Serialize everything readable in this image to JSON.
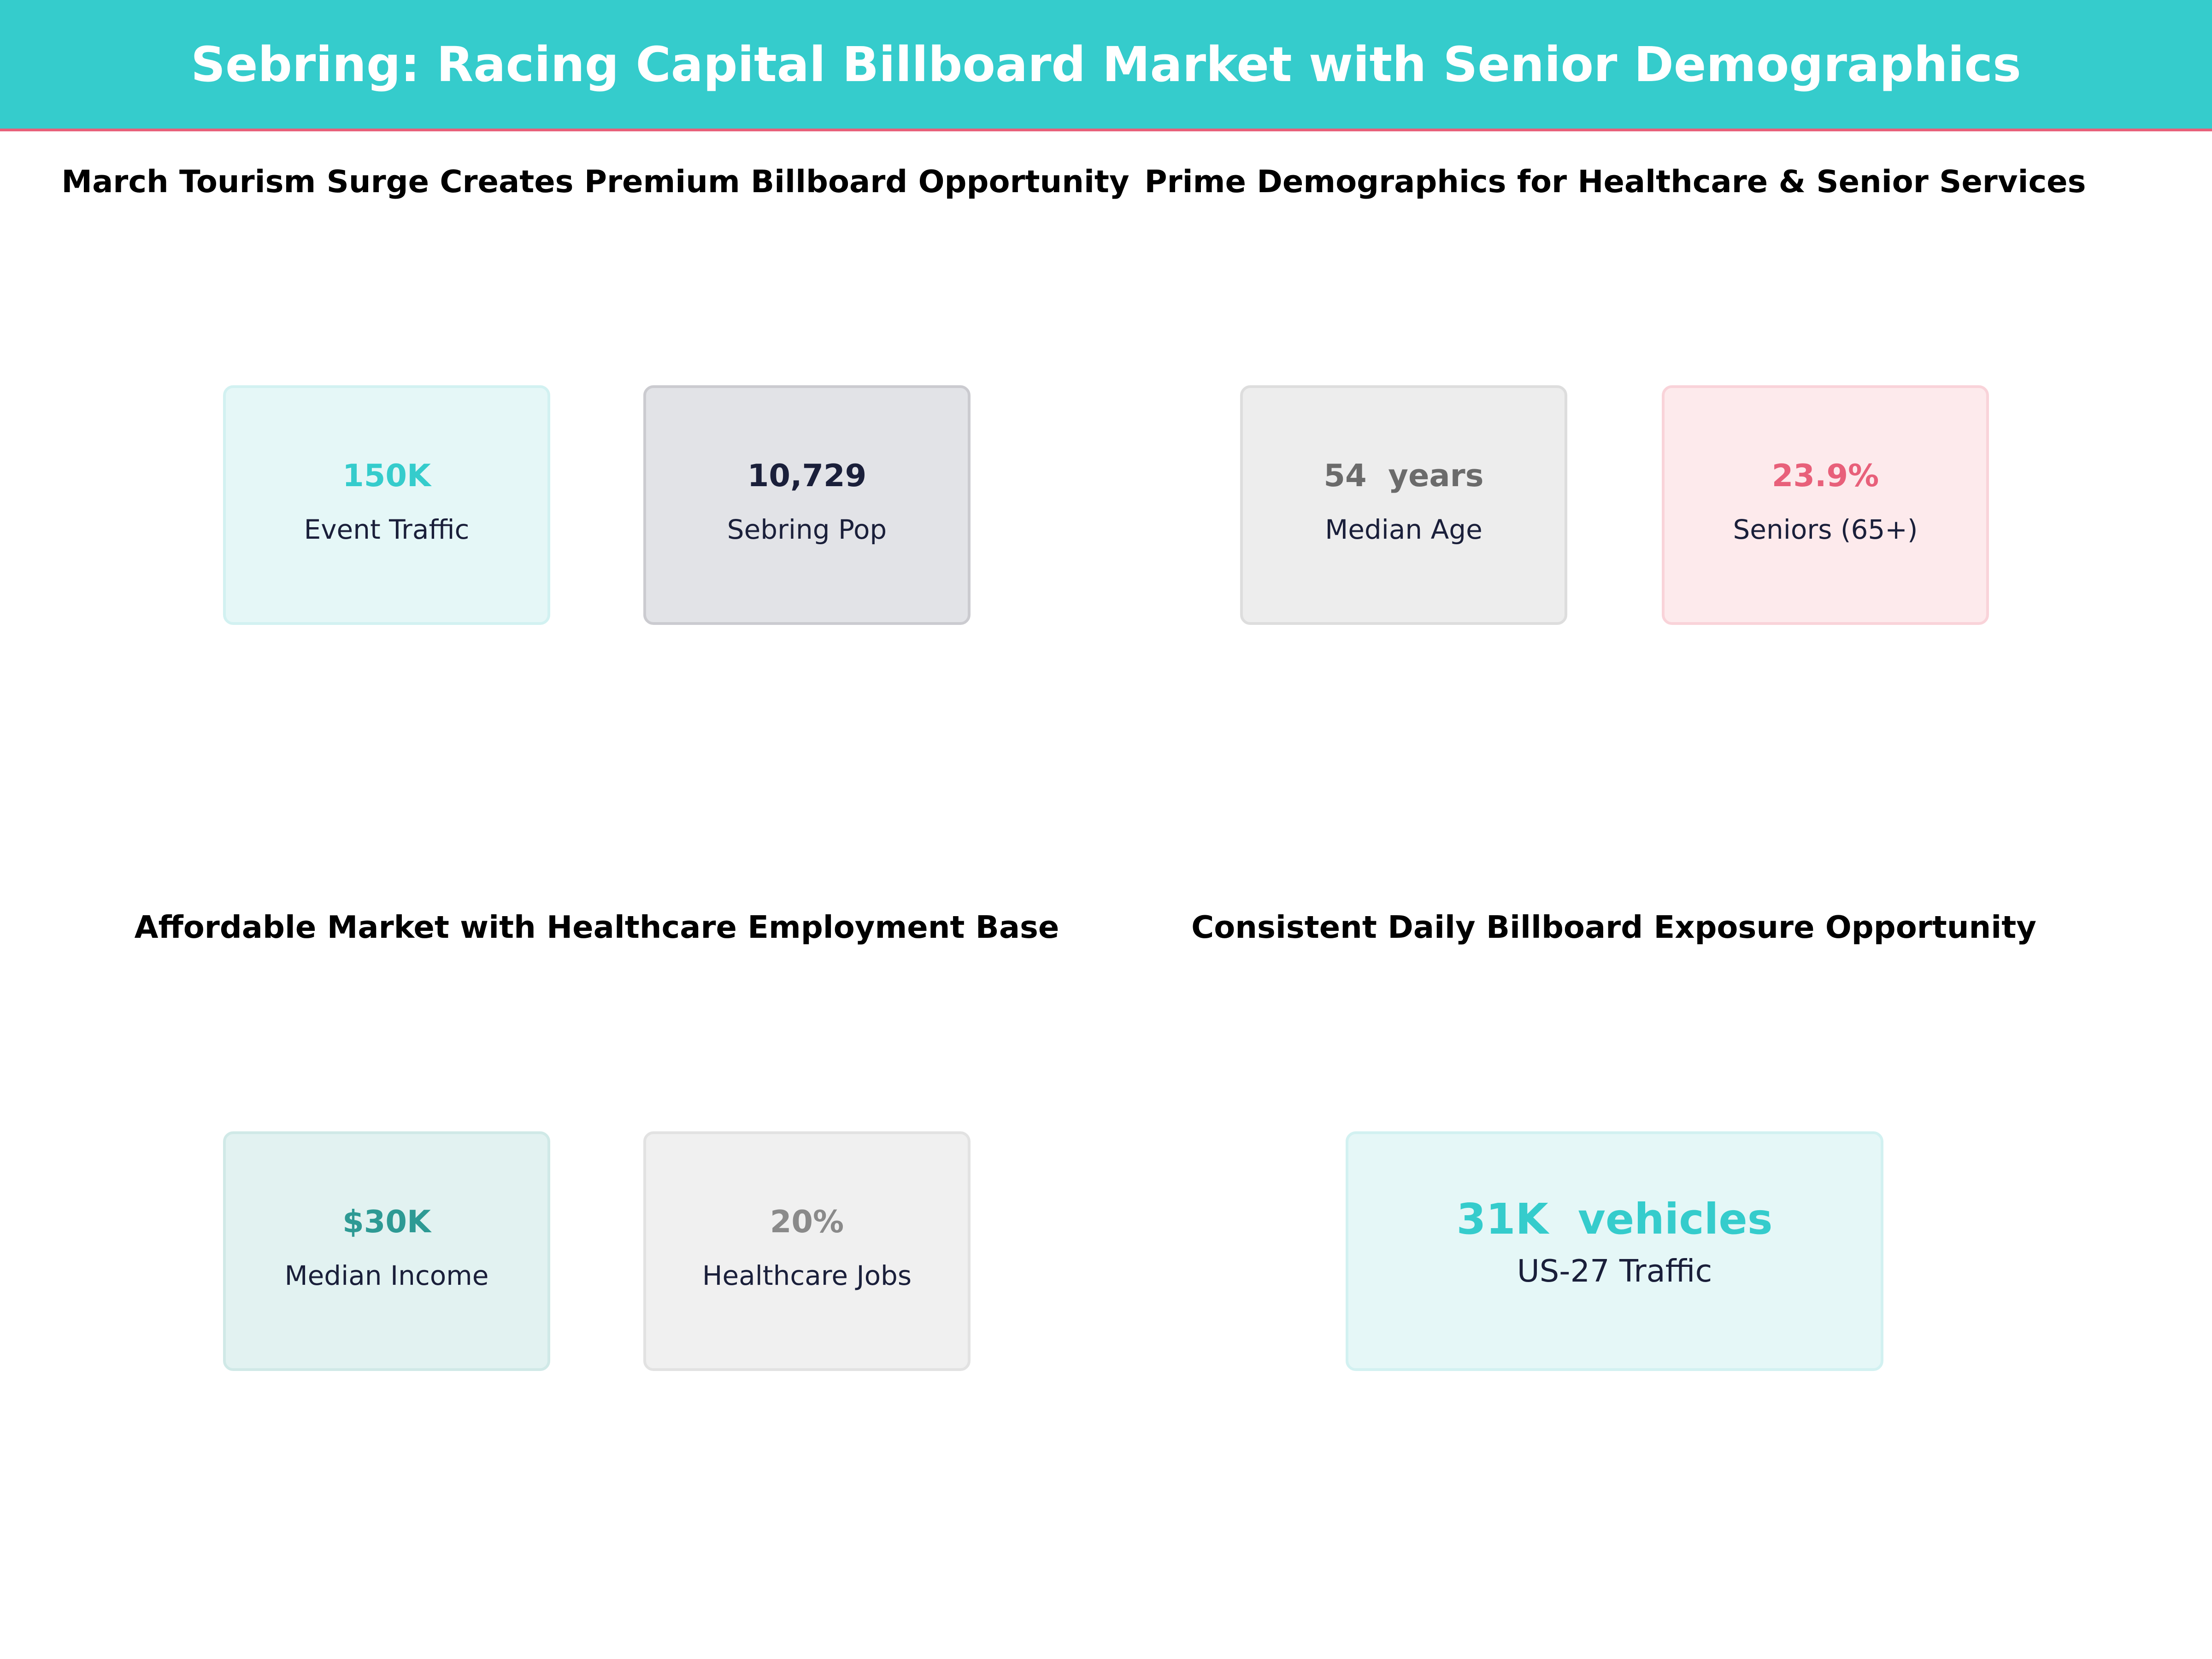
{
  "header": {
    "title": "Sebring: Racing Capital Billboard Market with Senior Demographics"
  },
  "colors": {
    "accent": "#35CCCC",
    "accent_line": "#E8607A"
  },
  "panels": [
    {
      "title": "March Tourism Surge Creates Premium Billboard Opportunity",
      "cards": [
        {
          "value": "150K",
          "label": "Event Traffic",
          "value_color": "#35CCCC"
        },
        {
          "value": "10,729",
          "label": "Sebring Pop",
          "value_color": "#1a1f3a"
        }
      ]
    },
    {
      "title": "Prime Demographics for Healthcare & Senior Services",
      "cards": [
        {
          "value": "54  years",
          "label": "Median Age",
          "value_color": "#6b6b6b"
        },
        {
          "value": "23.9%",
          "label": "Seniors (65+)",
          "value_color": "#E8607A"
        }
      ]
    },
    {
      "title": "Affordable Market with Healthcare Employment Base",
      "cards": [
        {
          "value": "$30K",
          "label": "Median Income",
          "value_color": "#2e9a94"
        },
        {
          "value": "20%",
          "label": "Healthcare Jobs",
          "value_color": "#8a8a8a"
        }
      ]
    },
    {
      "title": "Consistent Daily Billboard Exposure Opportunity",
      "cards": [
        {
          "value": "31K  vehicles",
          "label": "US-27 Traffic",
          "value_color": "#35CCCC"
        }
      ]
    }
  ]
}
